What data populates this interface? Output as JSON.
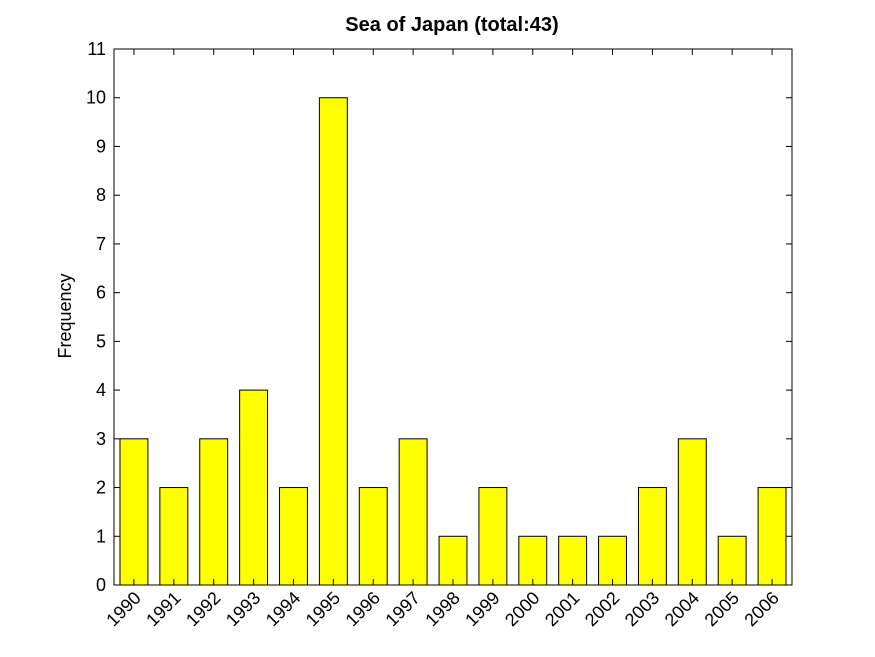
{
  "chart_data": {
    "type": "bar",
    "title": "Sea of Japan  (total:43)",
    "xlabel": "",
    "ylabel": "Frequency",
    "categories": [
      "1990",
      "1991",
      "1992",
      "1993",
      "1994",
      "1995",
      "1996",
      "1997",
      "1998",
      "1999",
      "2000",
      "2001",
      "2002",
      "2003",
      "2004",
      "2005",
      "2006"
    ],
    "values": [
      3,
      2,
      3,
      4,
      2,
      10,
      2,
      3,
      1,
      2,
      1,
      1,
      1,
      2,
      3,
      1,
      2
    ],
    "ylim": [
      0,
      11
    ],
    "yticks": [
      "0",
      "1",
      "2",
      "3",
      "4",
      "5",
      "6",
      "7",
      "8",
      "9",
      "10",
      "11"
    ],
    "bar_color": "#ffff00",
    "edge_color": "#000000",
    "grid": false
  }
}
